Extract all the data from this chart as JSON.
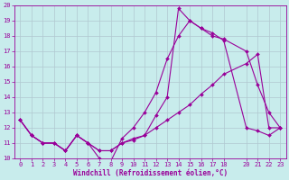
{
  "xlabel": "Windchill (Refroidissement éolien,°C)",
  "bg_color": "#c8ecec",
  "line_color": "#990099",
  "grid_color": "#b0c8d0",
  "xlim": [
    -0.5,
    23.5
  ],
  "ylim": [
    10,
    20
  ],
  "yticks": [
    10,
    11,
    12,
    13,
    14,
    15,
    16,
    17,
    18,
    19,
    20
  ],
  "xticks": [
    0,
    1,
    2,
    3,
    4,
    5,
    6,
    7,
    8,
    9,
    10,
    11,
    12,
    13,
    14,
    15,
    16,
    17,
    18,
    20,
    21,
    22,
    23
  ],
  "line1_x": [
    0,
    1,
    2,
    3,
    4,
    5,
    6,
    7,
    8,
    9,
    10,
    11,
    12,
    13,
    14,
    15,
    16,
    17,
    18,
    20,
    21,
    22,
    23
  ],
  "line1_y": [
    12.5,
    11.5,
    11.0,
    11.0,
    10.5,
    11.5,
    11.0,
    10.0,
    9.8,
    11.3,
    12.0,
    13.0,
    14.3,
    16.5,
    18.0,
    19.0,
    18.5,
    18.0,
    17.8,
    17.0,
    14.8,
    13.0,
    12.0
  ],
  "line2_x": [
    0,
    1,
    2,
    3,
    4,
    5,
    6,
    7,
    8,
    9,
    10,
    11,
    12,
    13,
    14,
    15,
    16,
    17,
    18,
    20,
    21,
    22,
    23
  ],
  "line2_y": [
    12.5,
    11.5,
    11.0,
    11.0,
    10.5,
    11.5,
    11.0,
    10.5,
    10.5,
    11.0,
    11.3,
    11.5,
    12.0,
    12.5,
    13.0,
    13.5,
    14.2,
    14.8,
    15.5,
    16.2,
    16.8,
    12.0,
    12.0
  ],
  "line3_x": [
    0,
    1,
    2,
    3,
    4,
    5,
    6,
    7,
    8,
    9,
    10,
    11,
    12,
    13,
    14,
    15,
    16,
    17,
    18,
    20,
    21,
    22,
    23
  ],
  "line3_y": [
    12.5,
    11.5,
    11.0,
    11.0,
    10.5,
    11.5,
    11.0,
    10.5,
    10.5,
    11.0,
    11.2,
    11.5,
    12.8,
    14.0,
    19.8,
    19.0,
    18.5,
    18.2,
    17.7,
    12.0,
    11.8,
    11.5,
    12.0
  ],
  "xlabel_fontsize": 5.5,
  "tick_fontsize": 5.0,
  "linewidth": 0.8,
  "markersize": 2.0
}
